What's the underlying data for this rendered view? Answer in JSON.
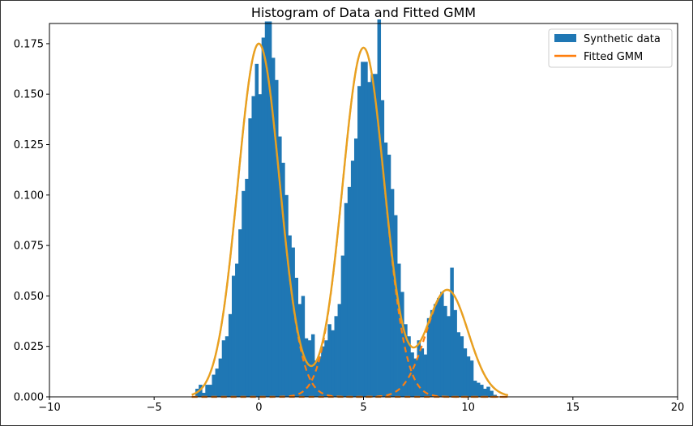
{
  "chart_data": {
    "type": "bar",
    "title": "Histogram of Data and Fitted GMM",
    "xlabel": "",
    "ylabel": "",
    "xlim": [
      -10,
      20
    ],
    "ylim": [
      0,
      0.185
    ],
    "xticks": [
      -10,
      -5,
      0,
      5,
      10,
      15,
      20
    ],
    "xtick_labels": [
      "−10",
      "−5",
      "0",
      "5",
      "10",
      "15",
      "20"
    ],
    "yticks": [
      0,
      0.025,
      0.05,
      0.075,
      0.1,
      0.125,
      0.15,
      0.175
    ],
    "ytick_labels": [
      "0.000",
      "0.025",
      "0.050",
      "0.075",
      "0.100",
      "0.125",
      "0.150",
      "0.175"
    ],
    "grid": false,
    "legend": {
      "location": "top-right",
      "entries": [
        "Synthetic data",
        "Fitted GMM"
      ]
    },
    "colors": {
      "histogram": "#1f77b4",
      "gmm": "#ff7f0e",
      "components": "#ff7f0e",
      "overlap": "#e8a020"
    },
    "histogram": {
      "name": "Synthetic data",
      "x_start": -3.03,
      "bin_width": 0.158,
      "values": [
        0.004,
        0.006,
        0.002,
        0.006,
        0.006,
        0.011,
        0.014,
        0.019,
        0.028,
        0.03,
        0.041,
        0.06,
        0.066,
        0.083,
        0.102,
        0.108,
        0.138,
        0.149,
        0.165,
        0.15,
        0.178,
        0.186,
        0.186,
        0.168,
        0.157,
        0.129,
        0.116,
        0.1,
        0.08,
        0.074,
        0.059,
        0.046,
        0.05,
        0.029,
        0.028,
        0.031,
        0.018,
        0.02,
        0.025,
        0.028,
        0.036,
        0.033,
        0.04,
        0.046,
        0.07,
        0.096,
        0.104,
        0.117,
        0.128,
        0.154,
        0.166,
        0.166,
        0.156,
        0.16,
        0.16,
        0.187,
        0.147,
        0.126,
        0.12,
        0.103,
        0.09,
        0.066,
        0.052,
        0.036,
        0.03,
        0.022,
        0.019,
        0.028,
        0.024,
        0.021,
        0.039,
        0.043,
        0.046,
        0.049,
        0.052,
        0.045,
        0.04,
        0.064,
        0.043,
        0.032,
        0.03,
        0.024,
        0.02,
        0.018,
        0.008,
        0.007,
        0.006,
        0.004,
        0.005,
        0.003,
        0.001
      ]
    },
    "gmm": {
      "name": "Fitted GMM",
      "x_range": [
        -3.2,
        11.9
      ],
      "components": [
        {
          "mean": 0.0,
          "std": 1.0,
          "weight": 0.4387
        },
        {
          "mean": 5.0,
          "std": 1.0,
          "weight": 0.4336
        },
        {
          "mean": 9.0,
          "std": 1.0,
          "weight": 0.1328
        }
      ]
    }
  }
}
